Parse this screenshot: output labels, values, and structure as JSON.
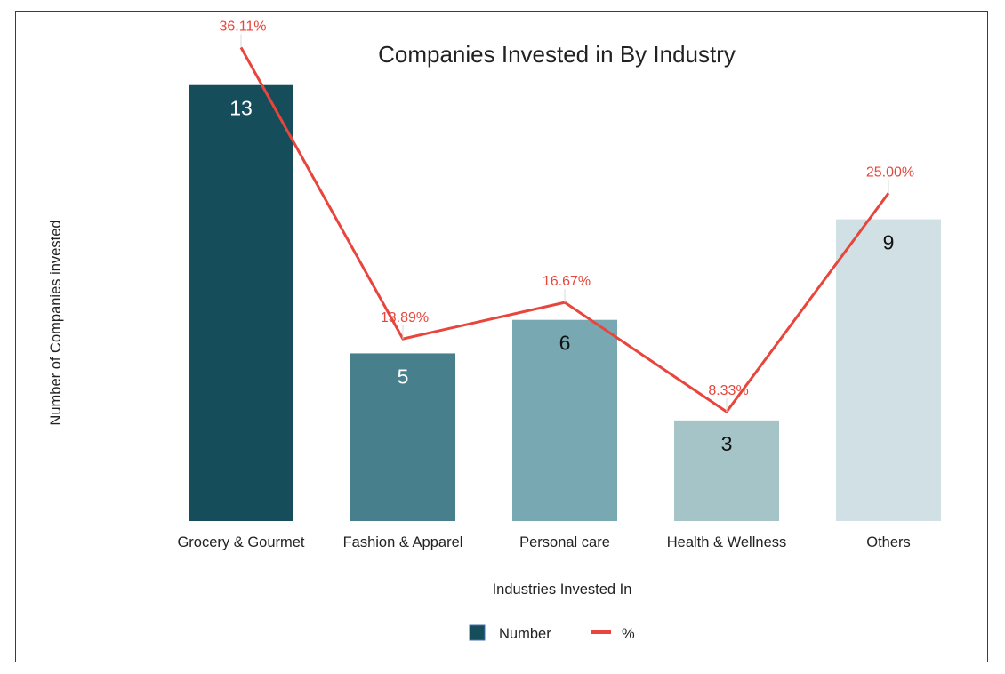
{
  "chart_data": {
    "type": "bar",
    "title": "Companies Invested in By Industry",
    "xlabel": "Industries Invested In",
    "ylabel": "Number of Companies invested",
    "categories": [
      "Grocery & Gourmet",
      "Fashion & Apparel",
      "Personal care",
      "Health & Wellness",
      "Others"
    ],
    "ylim": [
      0,
      14
    ],
    "grid": false,
    "legend_position": "bottom",
    "series": [
      {
        "name": "Number",
        "type": "bar",
        "values": [
          13,
          5,
          6,
          3,
          9
        ],
        "value_labels": [
          "13",
          "5",
          "6",
          "3",
          "9"
        ],
        "colors": [
          "#164d5a",
          "#477f8c",
          "#78a8b1",
          "#a4c4c8",
          "#d0e0e4"
        ],
        "label_colors": [
          "#ffffff",
          "#ffffff",
          "#111111",
          "#111111",
          "#111111"
        ]
      },
      {
        "name": "%",
        "type": "line",
        "values": [
          36.11,
          13.89,
          16.67,
          8.33,
          25.0
        ],
        "value_labels": [
          "36.11%",
          "13.89%",
          "16.67%",
          "8.33%",
          "25.00%"
        ],
        "color": "#e8453c"
      }
    ],
    "secondary_ylim": [
      0,
      40
    ],
    "legend": [
      {
        "label": "Number",
        "marker": "square",
        "color": "#164d5a"
      },
      {
        "label": "%",
        "marker": "line",
        "color": "#e8453c"
      }
    ]
  }
}
